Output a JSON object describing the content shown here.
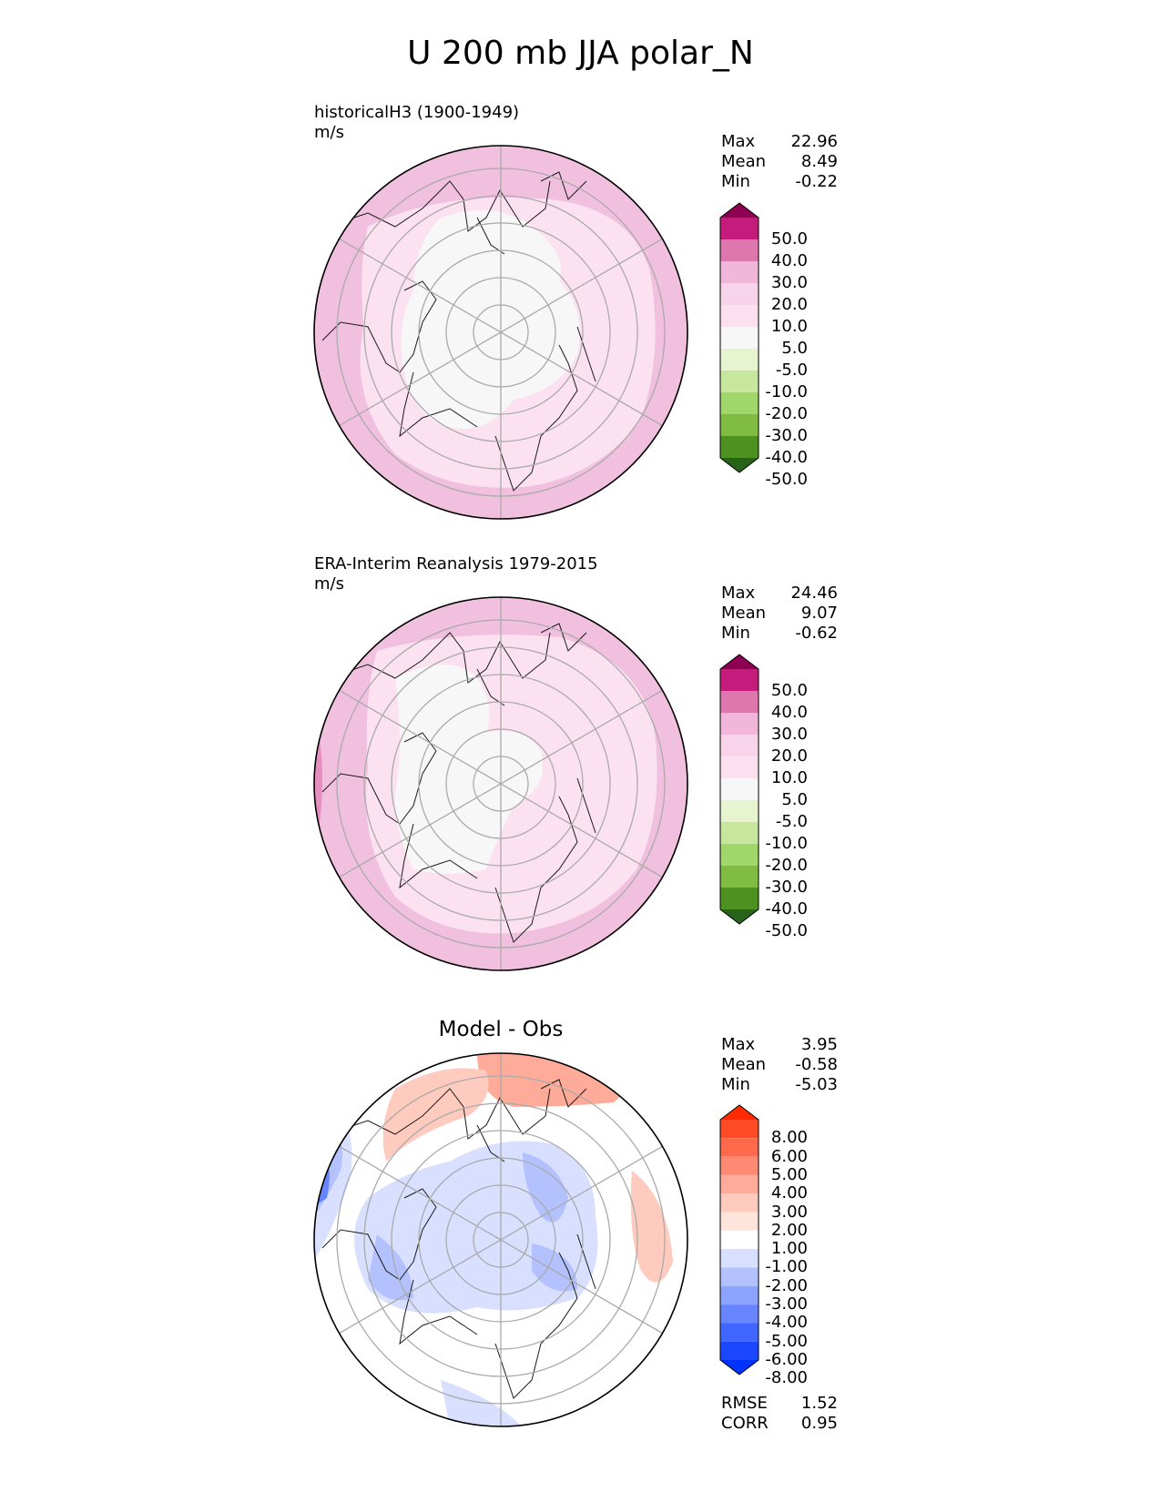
{
  "title": "U 200 mb JJA polar_N",
  "panels": [
    {
      "subtitle": "historicalH3 (1900-1949)",
      "units": "m/s",
      "stats": {
        "max_label": "Max",
        "max": "22.96",
        "mean_label": "Mean",
        "mean": "8.49",
        "min_label": "Min",
        "min": "-0.22"
      },
      "colorbar": {
        "labels": [
          "50.0",
          "40.0",
          "30.0",
          "20.0",
          "10.0",
          "5.0",
          "-5.0",
          "-10.0",
          "-20.0",
          "-30.0",
          "-40.0",
          "-50.0"
        ],
        "colors": [
          "#8e0152",
          "#c51b7d",
          "#de77ae",
          "#f1b6da",
          "#f8d4ea",
          "#fde0ef",
          "#f7f7f7",
          "#e6f5d0",
          "#c7e79f",
          "#a1d76a",
          "#7fbc41",
          "#4d9221",
          "#276419"
        ]
      }
    },
    {
      "subtitle": "ERA-Interim Reanalysis 1979-2015",
      "units": "m/s",
      "stats": {
        "max_label": "Max",
        "max": "24.46",
        "mean_label": "Mean",
        "mean": "9.07",
        "min_label": "Min",
        "min": "-0.62"
      },
      "colorbar": {
        "labels": [
          "50.0",
          "40.0",
          "30.0",
          "20.0",
          "10.0",
          "5.0",
          "-5.0",
          "-10.0",
          "-20.0",
          "-30.0",
          "-40.0",
          "-50.0"
        ],
        "colors": [
          "#8e0152",
          "#c51b7d",
          "#de77ae",
          "#f1b6da",
          "#f8d4ea",
          "#fde0ef",
          "#f7f7f7",
          "#e6f5d0",
          "#c7e79f",
          "#a1d76a",
          "#7fbc41",
          "#4d9221",
          "#276419"
        ]
      }
    },
    {
      "title": "Model - Obs",
      "stats": {
        "max_label": "Max",
        "max": "3.95",
        "mean_label": "Mean",
        "mean": "-0.58",
        "min_label": "Min",
        "min": "-5.03"
      },
      "colorbar": {
        "labels": [
          "8.00",
          "6.00",
          "5.00",
          "4.00",
          "3.00",
          "2.00",
          "1.00",
          "-1.00",
          "-2.00",
          "-3.00",
          "-4.00",
          "-5.00",
          "-6.00",
          "-8.00"
        ],
        "colors": [
          "#ff2a00",
          "#ff4a26",
          "#ff6a4d",
          "#ff8a73",
          "#ffab99",
          "#ffcbbf",
          "#ffe4dc",
          "#ffffff",
          "#d9e0ff",
          "#b3c2ff",
          "#8ca3ff",
          "#6685ff",
          "#4066ff",
          "#1a47ff",
          "#0033ff"
        ]
      },
      "metrics": {
        "rmse_label": "RMSE",
        "rmse": "1.52",
        "corr_label": "CORR",
        "corr": "0.95"
      }
    }
  ]
}
